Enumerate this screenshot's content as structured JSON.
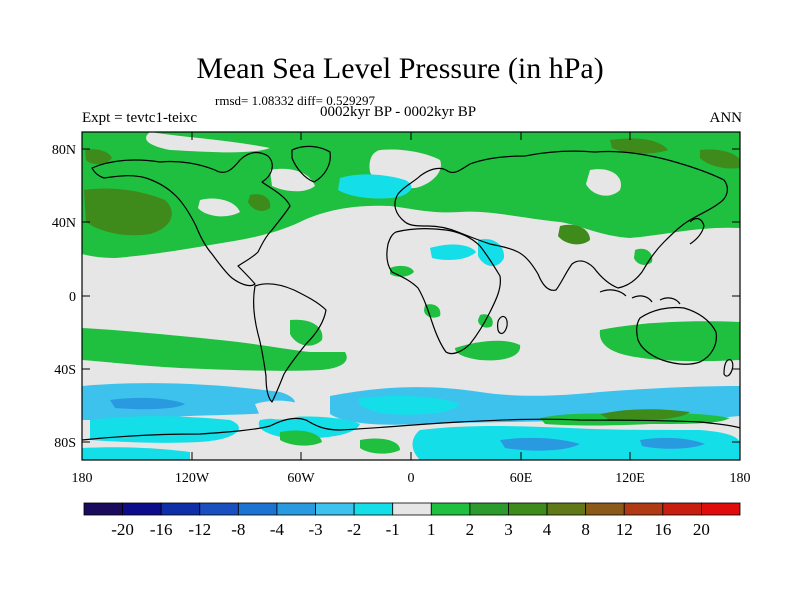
{
  "header": {
    "title": "Mean Sea Level Pressure (in hPa)",
    "stats": "rmsd= 1.08332 diff= 0.529297",
    "experiment": "Expt = tevtc1-teixc",
    "period": "0002kyr BP - 0002kyr BP",
    "season": "ANN"
  },
  "axes": {
    "lat_labels": [
      "80N",
      "40N",
      "0",
      "40S",
      "80S"
    ],
    "lon_labels": [
      "180",
      "120W",
      "60W",
      "0",
      "60E",
      "120E",
      "180"
    ]
  },
  "colorbar": {
    "colors": [
      "#1a0b5c",
      "#0d0d8c",
      "#0f2fa8",
      "#1a4fc0",
      "#1c73d2",
      "#2a9ae0",
      "#3cc2ec",
      "#14dfe8",
      "#e6e6e6",
      "#1fbf3f",
      "#2c9a2c",
      "#3e8a1a",
      "#607818",
      "#8c5a18",
      "#b03a14",
      "#c81e10",
      "#e00c0c"
    ],
    "labels": [
      "-20",
      "-16",
      "-12",
      "-8",
      "-4",
      "-3",
      "-2",
      "-1",
      "1",
      "2",
      "3",
      "4",
      "8",
      "12",
      "16",
      "20"
    ]
  },
  "map": {
    "colors": {
      "neutral": "#e6e6e6",
      "green": "#1fbf3f",
      "olive": "#3e8a1a",
      "cyan": "#14dfe8",
      "lightblue": "#3cc2ec",
      "blue": "#2a9ae0"
    }
  }
}
